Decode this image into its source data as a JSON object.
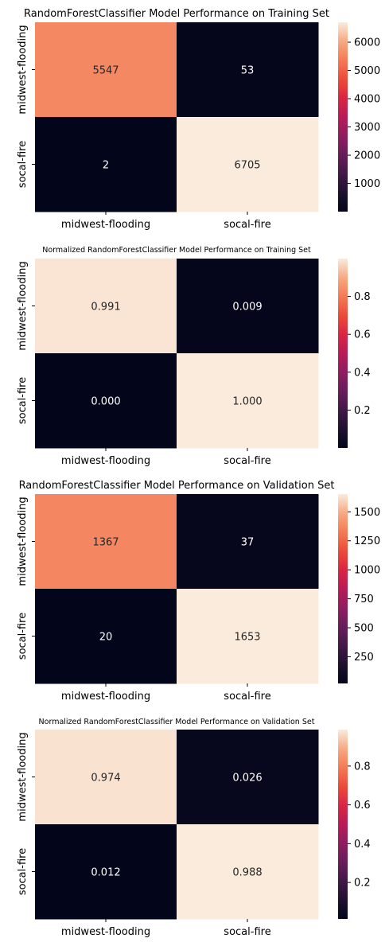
{
  "chart_data": [
    {
      "type": "heatmap",
      "title": "RandomForestClassifier Model Performance on Training Set",
      "row_labels": [
        "midwest-flooding",
        "socal-fire"
      ],
      "col_labels": [
        "midwest-flooding",
        "socal-fire"
      ],
      "values": [
        [
          5547,
          53
        ],
        [
          2,
          6705
        ]
      ],
      "cell_text": [
        [
          "5547",
          "53"
        ],
        [
          "2",
          "6705"
        ]
      ],
      "vmin": 2,
      "vmax": 6705,
      "colorbar_ticks": [
        1000,
        2000,
        3000,
        4000,
        5000,
        6000
      ],
      "colorbar_tick_labels": [
        "1000",
        "2000",
        "3000",
        "4000",
        "5000",
        "6000"
      ],
      "colormap": "rocket"
    },
    {
      "type": "heatmap",
      "title": "Normalized RandomForestClassifier Model Performance on Training Set",
      "row_labels": [
        "midwest-flooding",
        "socal-fire"
      ],
      "col_labels": [
        "midwest-flooding",
        "socal-fire"
      ],
      "values": [
        [
          0.991,
          0.009
        ],
        [
          0.0003,
          0.9997
        ]
      ],
      "cell_text": [
        [
          "0.991",
          "0.009"
        ],
        [
          "0.000",
          "1.000"
        ]
      ],
      "vmin": 0.0003,
      "vmax": 0.9997,
      "colorbar_ticks": [
        0.2,
        0.4,
        0.6,
        0.8
      ],
      "colorbar_tick_labels": [
        "0.2",
        "0.4",
        "0.6",
        "0.8"
      ],
      "colormap": "rocket"
    },
    {
      "type": "heatmap",
      "title": "RandomForestClassifier Model Performance on Validation Set",
      "row_labels": [
        "midwest-flooding",
        "socal-fire"
      ],
      "col_labels": [
        "midwest-flooding",
        "socal-fire"
      ],
      "values": [
        [
          1367,
          37
        ],
        [
          20,
          1653
        ]
      ],
      "cell_text": [
        [
          "1367",
          "37"
        ],
        [
          "20",
          "1653"
        ]
      ],
      "vmin": 20,
      "vmax": 1653,
      "colorbar_ticks": [
        250,
        500,
        750,
        1000,
        1250,
        1500
      ],
      "colorbar_tick_labels": [
        "250",
        "500",
        "750",
        "1000",
        "1250",
        "1500"
      ],
      "colormap": "rocket"
    },
    {
      "type": "heatmap",
      "title": "Normalized RandomForestClassifier Model Performance on Validation Set",
      "row_labels": [
        "midwest-flooding",
        "socal-fire"
      ],
      "col_labels": [
        "midwest-flooding",
        "socal-fire"
      ],
      "values": [
        [
          0.974,
          0.026
        ],
        [
          0.012,
          0.988
        ]
      ],
      "cell_text": [
        [
          "0.974",
          "0.026"
        ],
        [
          "0.012",
          "0.988"
        ]
      ],
      "vmin": 0.012,
      "vmax": 0.988,
      "colorbar_ticks": [
        0.2,
        0.4,
        0.6,
        0.8
      ],
      "colorbar_tick_labels": [
        "0.2",
        "0.4",
        "0.6",
        "0.8"
      ],
      "colormap": "rocket"
    }
  ]
}
